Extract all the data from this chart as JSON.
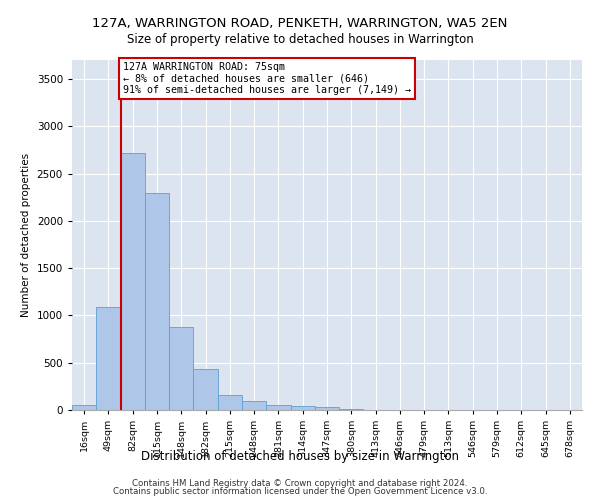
{
  "title": "127A, WARRINGTON ROAD, PENKETH, WARRINGTON, WA5 2EN",
  "subtitle": "Size of property relative to detached houses in Warrington",
  "xlabel": "Distribution of detached houses by size in Warrington",
  "ylabel": "Number of detached properties",
  "categories": [
    "16sqm",
    "49sqm",
    "82sqm",
    "115sqm",
    "148sqm",
    "182sqm",
    "215sqm",
    "248sqm",
    "281sqm",
    "314sqm",
    "347sqm",
    "380sqm",
    "413sqm",
    "446sqm",
    "479sqm",
    "513sqm",
    "546sqm",
    "579sqm",
    "612sqm",
    "645sqm",
    "678sqm"
  ],
  "values": [
    50,
    1090,
    2720,
    2290,
    880,
    430,
    160,
    90,
    55,
    45,
    30,
    10,
    5,
    2,
    1,
    0,
    0,
    0,
    0,
    0,
    0
  ],
  "bar_color": "#aec6e8",
  "bar_edge_color": "#5a9fd4",
  "vline_x_idx": 1.5,
  "vline_color": "#cc0000",
  "annotation_line1": "127A WARRINGTON ROAD: 75sqm",
  "annotation_line2": "← 8% of detached houses are smaller (646)",
  "annotation_line3": "91% of semi-detached houses are larger (7,149) →",
  "annotation_box_color": "#ffffff",
  "annotation_box_edge_color": "#cc0000",
  "ylim": [
    0,
    3700
  ],
  "yticks": [
    0,
    500,
    1000,
    1500,
    2000,
    2500,
    3000,
    3500
  ],
  "background_color": "#ffffff",
  "grid_color": "#dce4f0",
  "footer_line1": "Contains HM Land Registry data © Crown copyright and database right 2024.",
  "footer_line2": "Contains public sector information licensed under the Open Government Licence v3.0."
}
